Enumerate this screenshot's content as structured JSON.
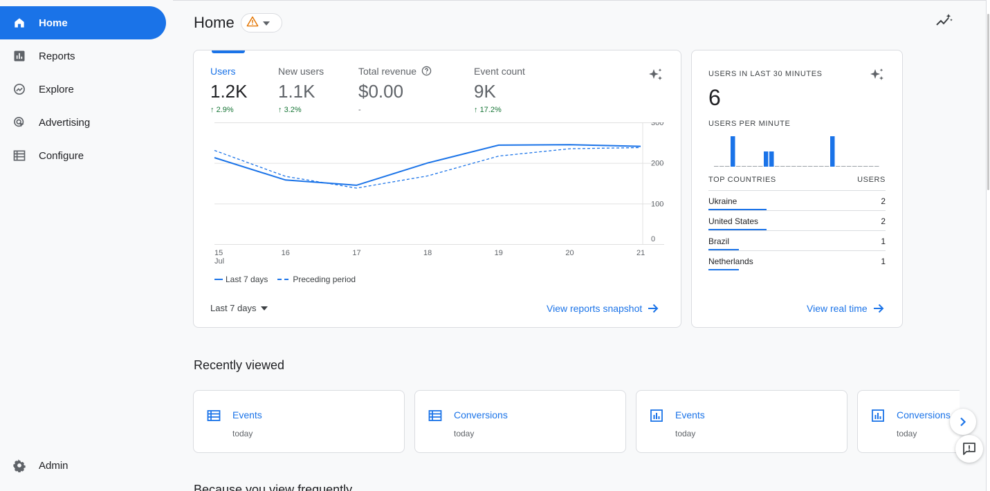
{
  "nav": {
    "home": "Home",
    "reports": "Reports",
    "explore": "Explore",
    "advertising": "Advertising",
    "configure": "Configure",
    "admin": "Admin"
  },
  "header": {
    "title": "Home"
  },
  "metrics": [
    {
      "label": "Users",
      "value": "1.2K",
      "delta": "2.9%"
    },
    {
      "label": "New users",
      "value": "1.1K",
      "delta": "3.2%"
    },
    {
      "label": "Total revenue",
      "value": "$0.00",
      "delta": "-"
    },
    {
      "label": "Event count",
      "value": "9K",
      "delta": "17.2%"
    }
  ],
  "chart_data": {
    "type": "line",
    "x": [
      "15 Jul",
      "16",
      "17",
      "18",
      "19",
      "20",
      "21"
    ],
    "y_ticks": [
      "300",
      "200",
      "100",
      "0"
    ],
    "ylim": [
      0,
      300
    ],
    "series": [
      {
        "name": "Last 7 days",
        "style": "solid",
        "values": [
          213,
          158,
          145,
          200,
          244,
          245,
          241
        ]
      },
      {
        "name": "Preceding period",
        "style": "dashed",
        "values": [
          231,
          167,
          138,
          168,
          217,
          235,
          238
        ]
      }
    ],
    "color": "#1a73e8"
  },
  "legend": {
    "current": "Last 7 days",
    "previous": "Preceding period"
  },
  "main_card": {
    "range": "Last 7 days",
    "snapshot_link": "View reports snapshot"
  },
  "realtime": {
    "title": "USERS IN LAST 30 MINUTES",
    "count": "6",
    "per_minute_label": "USERS PER MINUTE",
    "per_minute_values": [
      0,
      0,
      0,
      1,
      0,
      0,
      0,
      0,
      0,
      0.5,
      0.5,
      0,
      0,
      0,
      0,
      0,
      0,
      0,
      0,
      0,
      0,
      1,
      0,
      0,
      0,
      0,
      0,
      0,
      0,
      0
    ],
    "countries_header": "TOP COUNTRIES",
    "users_header": "USERS",
    "countries": [
      {
        "name": "Ukraine",
        "users": "2",
        "share": 0.33
      },
      {
        "name": "United States",
        "users": "2",
        "share": 0.33
      },
      {
        "name": "Brazil",
        "users": "1",
        "share": 0.17
      },
      {
        "name": "Netherlands",
        "users": "1",
        "share": 0.17
      }
    ],
    "link": "View real time"
  },
  "recently_viewed": {
    "title": "Recently viewed",
    "items": [
      {
        "title": "Events",
        "sub": "today",
        "icon": "table-icon"
      },
      {
        "title": "Conversions",
        "sub": "today",
        "icon": "table-icon"
      },
      {
        "title": "Events",
        "sub": "today",
        "icon": "bar-chart-icon"
      },
      {
        "title": "Conversions",
        "sub": "today",
        "icon": "bar-chart-icon"
      }
    ]
  },
  "because_section": {
    "title": "Because you view frequently"
  },
  "colors": {
    "accent": "#1a73e8",
    "positive": "#137333",
    "warning": "#e37400"
  }
}
